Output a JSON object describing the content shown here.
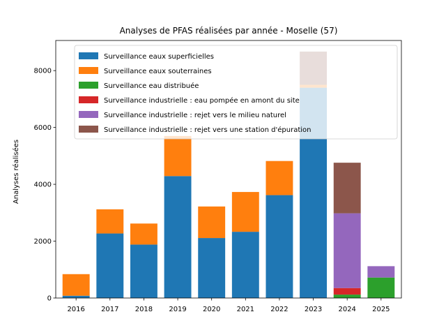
{
  "chart_data": {
    "type": "bar",
    "stacked": true,
    "title": "Analyses de PFAS réalisées par année - Moselle (57)",
    "xlabel": "",
    "ylabel": "Analyses réalisées",
    "ylim": [
      0,
      9060
    ],
    "yticks": [
      0,
      2000,
      4000,
      6000,
      8000
    ],
    "ytick_labels": [
      "0",
      "2000",
      "4000",
      "6000",
      "8000"
    ],
    "categories": [
      "2016",
      "2017",
      "2018",
      "2019",
      "2020",
      "2021",
      "2022",
      "2023",
      "2024",
      "2025"
    ],
    "legend_position": "top",
    "series": [
      {
        "name": "Surveillance eaux superficielles",
        "color": "#1f77b4",
        "values": [
          80,
          2270,
          1880,
          4290,
          2110,
          2330,
          3620,
          7400,
          0,
          0
        ]
      },
      {
        "name": "Surveillance eaux souterraines",
        "color": "#ff7f0e",
        "values": [
          760,
          850,
          740,
          1410,
          1110,
          1400,
          1200,
          100,
          0,
          0
        ]
      },
      {
        "name": "Surveillance eau distribuée",
        "color": "#2ca02c",
        "values": [
          0,
          0,
          0,
          0,
          0,
          0,
          0,
          0,
          120,
          720
        ]
      },
      {
        "name": "Surveillance industrielle : eau pompée en amont du site",
        "color": "#d62728",
        "values": [
          0,
          0,
          0,
          0,
          0,
          0,
          0,
          0,
          230,
          0
        ]
      },
      {
        "name": "Surveillance industrielle : rejet vers le milieu naturel",
        "color": "#9467bd",
        "values": [
          0,
          0,
          0,
          0,
          0,
          0,
          0,
          0,
          2630,
          400
        ]
      },
      {
        "name": "Surveillance industrielle : rejet vers une station d'épuration",
        "color": "#8c564b",
        "values": [
          0,
          0,
          0,
          0,
          0,
          0,
          0,
          1170,
          1780,
          0
        ]
      }
    ]
  }
}
